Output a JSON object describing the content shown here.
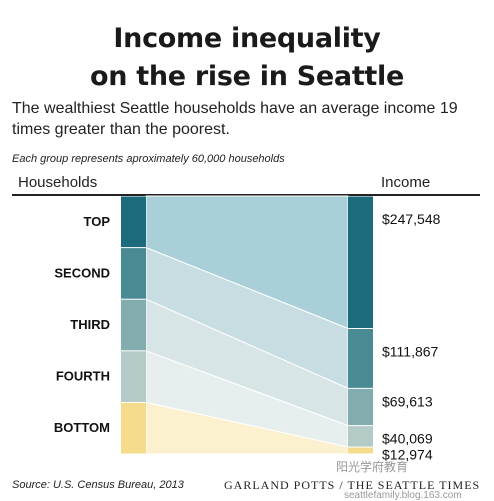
{
  "header": {
    "title_line1": "Income inequality",
    "title_line2": "on the rise in Seattle",
    "subtitle": "The wealthiest Seattle households have an average income 19 times greater than the poorest.",
    "note": "Each group represents aproximately 60,000 households"
  },
  "chart_data": {
    "type": "bar",
    "left_axis_label": "Households",
    "right_axis_label": "Income",
    "categories": [
      "TOP",
      "SECOND",
      "THIRD",
      "FOURTH",
      "BOTTOM"
    ],
    "values": [
      247548,
      111867,
      69613,
      40069,
      12974
    ],
    "value_labels": [
      "$247,548",
      "$111,867",
      "$69,613",
      "$40,069",
      "$12,974"
    ],
    "colors": {
      "TOP": "#1b6b7c",
      "SECOND": "#4a8a93",
      "THIRD": "#82acae",
      "FOURTH": "#b3cac6",
      "BOTTOM": "#f5dc8c"
    },
    "band_colors": {
      "TOP": "#a9d0d8",
      "SECOND": "#c7dde2",
      "THIRD": "#d7e5e7",
      "FOURTH": "#e6eeee",
      "BOTTOM": "#fbf1cf"
    }
  },
  "footer": {
    "source": "Source: U.S. Census Bureau, 2013",
    "credit": "GARLAND POTTS / THE SEATTLE TIMES",
    "watermark": "阳光学府教育",
    "watermark_url": "seattlefamily.blog.163.com"
  }
}
